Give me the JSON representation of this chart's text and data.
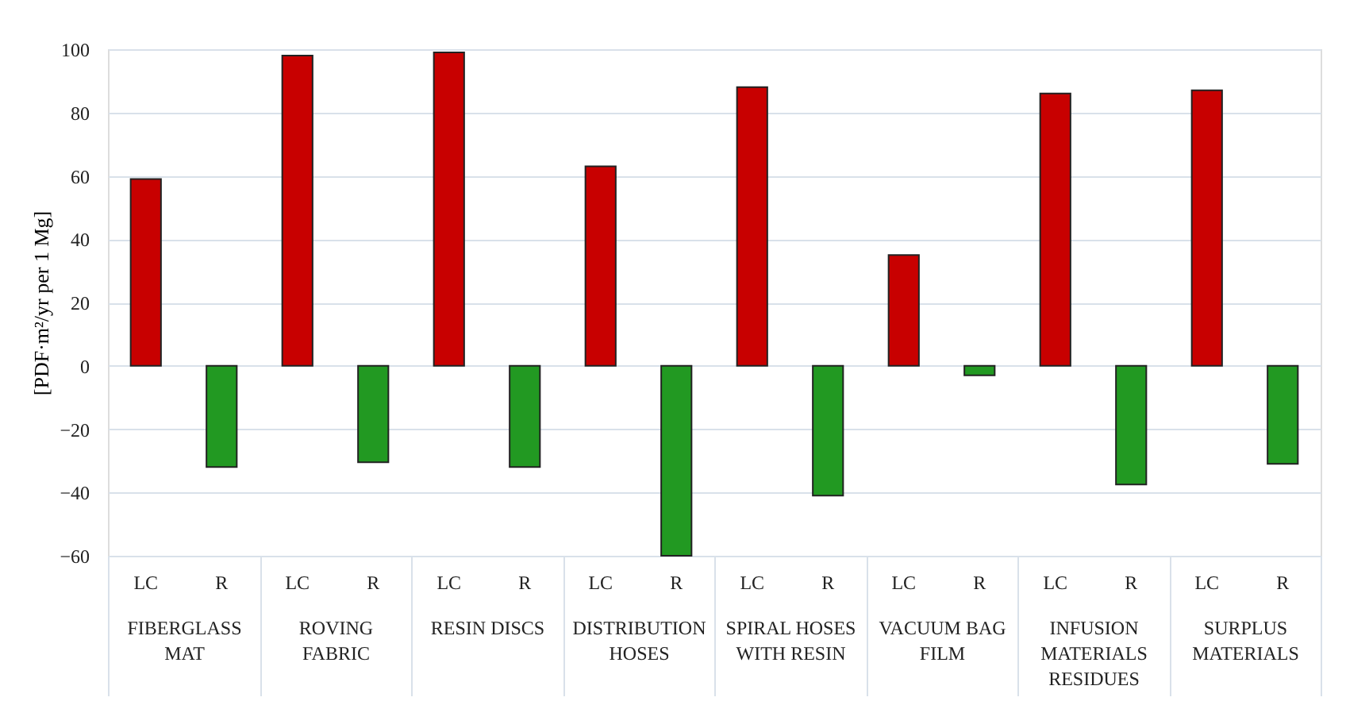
{
  "chart_data": {
    "type": "bar",
    "ylabel": "[PDF·m²/yr per 1 Mg]",
    "categories": [
      "FIBERGLASS MAT",
      "ROVING FABRIC",
      "RESIN DISCS",
      "DISTRIBUTION HOSES",
      "SPIRAL HOSES WITH RESIN",
      "VACUUM BAG FILM",
      "INFUSION MATERIALS RESIDUES",
      "SURPLUS MATERIALS"
    ],
    "series": [
      {
        "name": "LC",
        "color": "#c80000",
        "values": [
          59,
          98,
          99,
          63,
          88,
          35,
          86,
          87
        ]
      },
      {
        "name": "R",
        "color": "#229922",
        "values": [
          -32,
          -30.5,
          -32,
          -60,
          -41,
          -3,
          -37.5,
          -31
        ]
      }
    ],
    "ylim": [
      -60,
      100
    ],
    "yticks": [
      -60,
      -40,
      -20,
      0,
      20,
      40,
      60,
      80,
      100
    ],
    "grid": "y"
  }
}
